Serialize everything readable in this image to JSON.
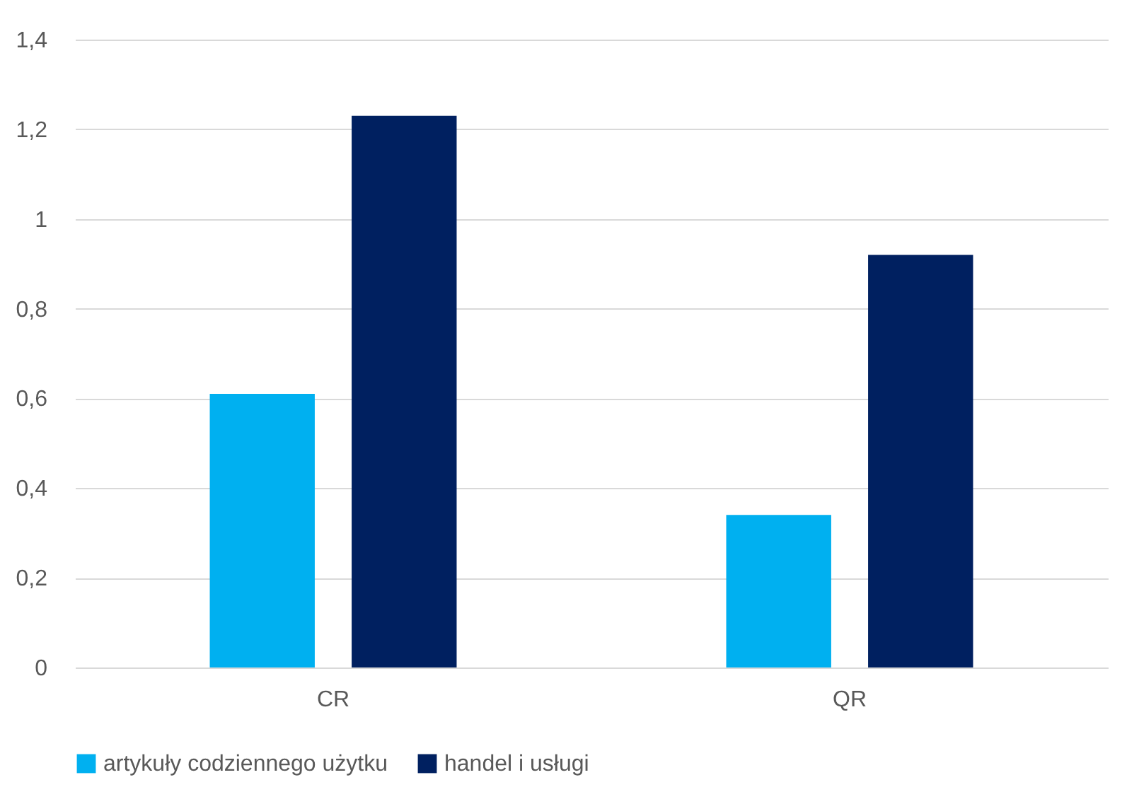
{
  "chart_data": {
    "type": "bar",
    "categories": [
      "CR",
      "QR"
    ],
    "series": [
      {
        "name": "artykuły codziennego użytku",
        "color": "#00b0f0",
        "values": [
          0.61,
          0.34
        ]
      },
      {
        "name": "handel i usługi",
        "color": "#002060",
        "values": [
          1.23,
          0.92
        ]
      }
    ],
    "ylim": [
      0,
      1.4
    ],
    "yticks": [
      0,
      {
        "value": 0.2,
        "label": "0,2"
      },
      {
        "value": 0.4,
        "label": "0,4"
      },
      {
        "value": 0.6,
        "label": "0,6"
      },
      {
        "value": 0.8,
        "label": "0,8"
      },
      1,
      {
        "value": 1.2,
        "label": "1,2"
      },
      {
        "value": 1.4,
        "label": "1,4"
      }
    ],
    "grid": "y",
    "legend": "bottom"
  }
}
